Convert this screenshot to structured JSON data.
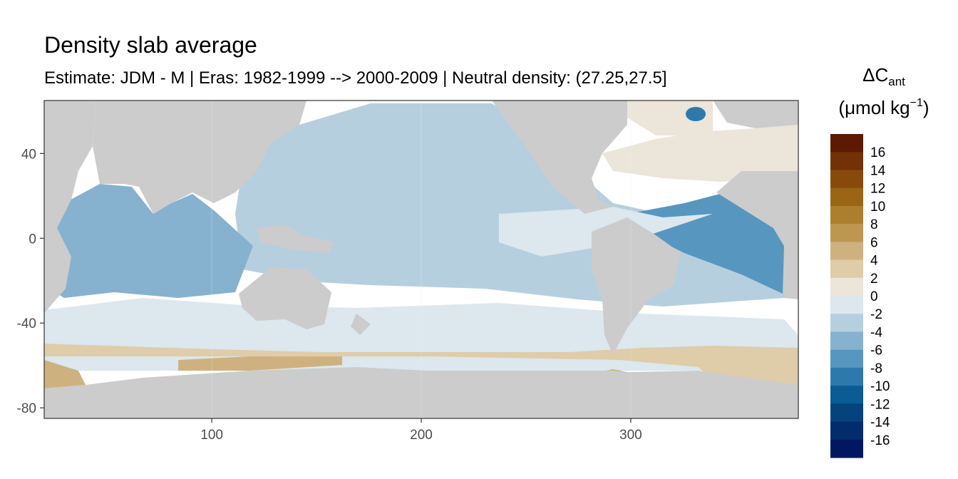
{
  "chart_data": {
    "type": "heatmap",
    "title": "Density slab average",
    "subtitle": "Estimate: JDM - M | Eras: 1982-1999 --> 2000-2009 | Neutral density: (27.25,27.5]",
    "xlabel": "",
    "ylabel": "",
    "xlim": [
      20,
      380
    ],
    "ylim": [
      -85,
      65
    ],
    "x_ticks": [
      100,
      200,
      300
    ],
    "y_ticks": [
      40,
      0,
      -40,
      -80
    ],
    "grid": true,
    "legend": {
      "position": "right",
      "title_main": "ΔC",
      "title_sub": "ant",
      "unit_main": "(μmol kg",
      "unit_sup": "−1",
      "unit_close": ")",
      "breaks": [
        16,
        14,
        12,
        10,
        8,
        6,
        4,
        2,
        0,
        -2,
        -4,
        -6,
        -8,
        -10,
        -12,
        -14,
        -16
      ],
      "colors": [
        "#5c1a03",
        "#723106",
        "#874a0a",
        "#9a6514",
        "#ab7f2d",
        "#bc9750",
        "#cdb27f",
        "#dfcca8",
        "#ece5da",
        "#dce7ee",
        "#b6cfdf",
        "#86b2cf",
        "#5797bf",
        "#2d79ab",
        "#0b5b94",
        "#05437d",
        "#032c6b",
        "#011860"
      ]
    },
    "fields": [
      {
        "region": "north-pacific",
        "value": -3
      },
      {
        "region": "indian-ocean",
        "value": -5
      },
      {
        "region": "tropical-atlantic-east",
        "value": -7
      },
      {
        "region": "southern-ocean-band",
        "value": -1
      },
      {
        "region": "antarctic-margin",
        "value": 5
      },
      {
        "region": "weddell-sector",
        "value": 3
      },
      {
        "region": "north-atlantic",
        "value": 1
      },
      {
        "region": "labrador-sea-spot",
        "value": -9
      }
    ]
  },
  "colors": {
    "land": "#cccccc",
    "no_data": "#ffffff",
    "panel_border": "#333333",
    "grid": "#ebebeb"
  }
}
